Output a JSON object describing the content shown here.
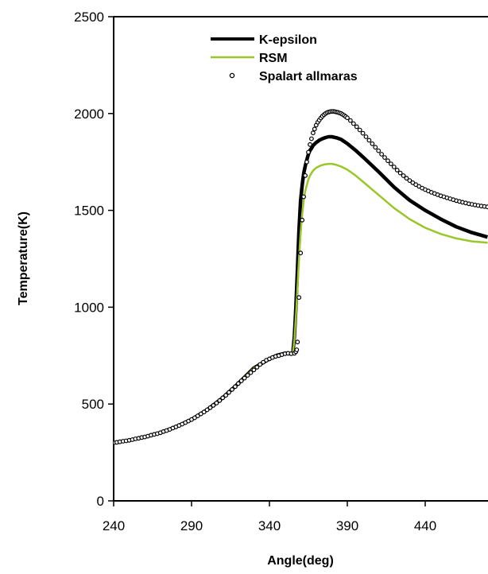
{
  "chart_data": {
    "type": "line",
    "title": "",
    "xlabel": "Angle(deg)",
    "ylabel": "Temperature(K)",
    "xlim": [
      240,
      480
    ],
    "ylim": [
      0,
      2500
    ],
    "xticks": [
      240,
      290,
      340,
      390,
      440
    ],
    "yticks": [
      0,
      500,
      1000,
      1500,
      2000,
      2500
    ],
    "grid": false,
    "legend": "top-center",
    "series": [
      {
        "name": "K-epsilon",
        "style": "line",
        "color": "#000000",
        "x": [
          240,
          250,
          260,
          270,
          280,
          290,
          300,
          310,
          320,
          330,
          340,
          345,
          350,
          353,
          355,
          356,
          357,
          358,
          359,
          360,
          361,
          362,
          363,
          364,
          365,
          366,
          367,
          368,
          370,
          372,
          374,
          376,
          378,
          380,
          383,
          386,
          390,
          395,
          400,
          410,
          420,
          430,
          440,
          450,
          460,
          470,
          480
        ],
        "y": [
          300,
          313,
          330,
          352,
          382,
          420,
          470,
          532,
          606,
          686,
          733,
          752,
          762,
          760,
          762,
          850,
          1000,
          1200,
          1400,
          1550,
          1630,
          1690,
          1730,
          1760,
          1790,
          1810,
          1820,
          1835,
          1850,
          1862,
          1870,
          1876,
          1880,
          1880,
          1875,
          1866,
          1845,
          1812,
          1776,
          1700,
          1620,
          1552,
          1500,
          1455,
          1415,
          1385,
          1362
        ]
      },
      {
        "name": "RSM",
        "style": "line",
        "color": "#9bc62a",
        "x": [
          240,
          250,
          260,
          270,
          280,
          290,
          300,
          310,
          320,
          330,
          340,
          345,
          350,
          353,
          355,
          356,
          357,
          358,
          359,
          360,
          361,
          362,
          363,
          364,
          365,
          366,
          368,
          370,
          373,
          376,
          378,
          380,
          383,
          386,
          390,
          395,
          400,
          410,
          420,
          430,
          440,
          450,
          460,
          470,
          480
        ],
        "y": [
          300,
          313,
          330,
          352,
          382,
          420,
          470,
          532,
          606,
          686,
          733,
          752,
          762,
          760,
          762,
          830,
          950,
          1100,
          1250,
          1380,
          1480,
          1550,
          1600,
          1630,
          1660,
          1680,
          1705,
          1720,
          1732,
          1738,
          1740,
          1740,
          1735,
          1726,
          1710,
          1682,
          1648,
          1580,
          1512,
          1455,
          1410,
          1378,
          1355,
          1340,
          1333
        ]
      },
      {
        "name": "Spalart allmaras",
        "style": "markers",
        "color": "#000000",
        "x": [
          240,
          242,
          244,
          246,
          248,
          250,
          252,
          254,
          256,
          258,
          260,
          262,
          264,
          266,
          268,
          270,
          272,
          274,
          276,
          278,
          280,
          282,
          284,
          286,
          288,
          290,
          292,
          294,
          296,
          298,
          300,
          302,
          304,
          306,
          308,
          310,
          312,
          314,
          316,
          318,
          320,
          322,
          324,
          326,
          328,
          330,
          332,
          334,
          336,
          338,
          340,
          342,
          344,
          346,
          348,
          350,
          352,
          354,
          356,
          357,
          357.5,
          358,
          359,
          360,
          361,
          362,
          363,
          364,
          365,
          366,
          367,
          368,
          369,
          370,
          371,
          372,
          373,
          374,
          375,
          376,
          377,
          378,
          379,
          380,
          381,
          382,
          383,
          384,
          385,
          386,
          387,
          388,
          389,
          390,
          392,
          394,
          396,
          398,
          400,
          402,
          404,
          406,
          408,
          410,
          412,
          414,
          416,
          418,
          420,
          422,
          424,
          426,
          428,
          430,
          432,
          434,
          436,
          438,
          440,
          442,
          444,
          446,
          448,
          450,
          452,
          454,
          456,
          458,
          460,
          462,
          464,
          466,
          468,
          470,
          472,
          474,
          476,
          478,
          480
        ],
        "y": [
          300,
          302,
          305,
          308,
          310,
          313,
          316,
          320,
          323,
          327,
          330,
          334,
          339,
          343,
          347,
          352,
          358,
          363,
          369,
          376,
          382,
          389,
          396,
          404,
          412,
          420,
          429,
          439,
          449,
          459,
          470,
          481,
          493,
          505,
          518,
          532,
          545,
          560,
          575,
          590,
          606,
          620,
          634,
          648,
          662,
          676,
          690,
          704,
          716,
          726,
          733,
          740,
          746,
          750,
          755,
          760,
          762,
          760,
          762,
          770,
          780,
          820,
          1050,
          1280,
          1450,
          1570,
          1680,
          1750,
          1800,
          1840,
          1870,
          1900,
          1920,
          1940,
          1955,
          1966,
          1977,
          1986,
          1994,
          2000,
          2005,
          2008,
          2010,
          2011,
          2011,
          2010,
          2008,
          2006,
          2003,
          2000,
          1995,
          1990,
          1984,
          1978,
          1964,
          1948,
          1932,
          1915,
          1898,
          1880,
          1862,
          1844,
          1826,
          1808,
          1790,
          1773,
          1756,
          1740,
          1724,
          1708,
          1693,
          1679,
          1666,
          1654,
          1643,
          1633,
          1624,
          1615,
          1607,
          1600,
          1593,
          1587,
          1581,
          1575,
          1570,
          1565,
          1560,
          1555,
          1550,
          1546,
          1542,
          1538,
          1534,
          1531,
          1528,
          1525,
          1522,
          1520,
          1518
        ]
      }
    ]
  }
}
